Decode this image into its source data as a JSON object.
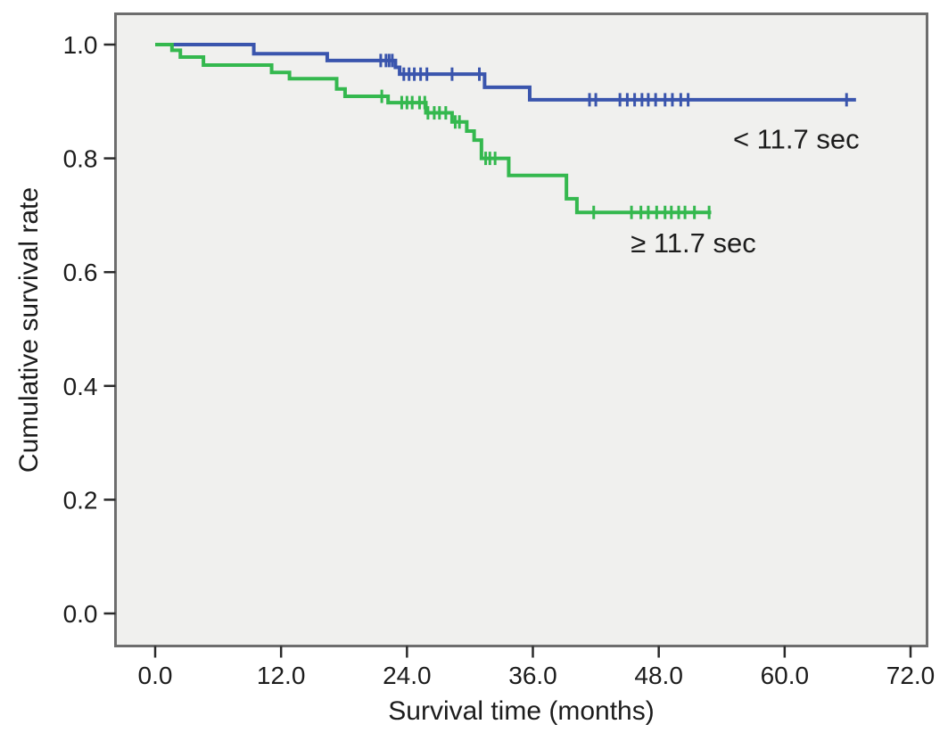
{
  "figure": {
    "background": "#ffffff",
    "plot_background": "#f0f0ee",
    "border_color": "#6d6d6d",
    "tick_color": "#2a2a2a",
    "text_color": "#1c1c1c"
  },
  "chart_data": {
    "type": "line",
    "subtype": "kaplan_meier_step",
    "title": "",
    "xlabel": "Survival time (months)",
    "ylabel": "Cumulative survival rate",
    "xlim": [
      0,
      72
    ],
    "ylim": [
      0.0,
      1.0
    ],
    "grid": false,
    "legend_position": "inline_annotations",
    "x_ticks": [
      0,
      12,
      24,
      36,
      48,
      60,
      72
    ],
    "x_tick_labels": [
      "0.0",
      "12.0",
      "24.0",
      "36.0",
      "48.0",
      "60.0",
      "72.0"
    ],
    "y_ticks": [
      1.0,
      0.8,
      0.6,
      0.4,
      0.2,
      0.0
    ],
    "y_tick_labels": [
      "1.0",
      "0.8",
      "0.6",
      "0.4",
      "0.2",
      "0.0"
    ],
    "series": [
      {
        "name": "< 11.7 sec",
        "color": "#3a55ad",
        "steps": [
          [
            0,
            1.0
          ],
          [
            9.4,
            0.984
          ],
          [
            16.4,
            0.972
          ],
          [
            22.9,
            0.96
          ],
          [
            23.3,
            0.948
          ],
          [
            31.4,
            0.925
          ],
          [
            35.7,
            0.903
          ]
        ],
        "end_x": 66.8,
        "censor_x": [
          21.5,
          22.0,
          22.3,
          22.6,
          23.7,
          24.2,
          24.7,
          25.3,
          25.9,
          28.3,
          30.9,
          41.4,
          42.0,
          44.3,
          45.0,
          45.7,
          46.4,
          47.0,
          47.7,
          48.6,
          49.3,
          50.1,
          50.8,
          65.9
        ]
      },
      {
        "name": "≥ 11.7 sec",
        "color": "#34b84e",
        "steps": [
          [
            0,
            1.0
          ],
          [
            1.6,
            0.99
          ],
          [
            2.4,
            0.978
          ],
          [
            4.6,
            0.964
          ],
          [
            11.1,
            0.951
          ],
          [
            12.8,
            0.94
          ],
          [
            17.3,
            0.922
          ],
          [
            18.1,
            0.909
          ],
          [
            22.2,
            0.898
          ],
          [
            25.8,
            0.88
          ],
          [
            28.3,
            0.864
          ],
          [
            29.7,
            0.848
          ],
          [
            30.4,
            0.832
          ],
          [
            31.1,
            0.8
          ],
          [
            33.7,
            0.77
          ],
          [
            39.2,
            0.729
          ],
          [
            40.2,
            0.705
          ]
        ],
        "end_x": 53.0,
        "censor_x": [
          21.6,
          23.5,
          24.0,
          24.5,
          25.2,
          25.7,
          26.0,
          26.6,
          27.1,
          27.7,
          28.6,
          29.0,
          31.5,
          31.9,
          32.4,
          41.8,
          45.4,
          46.3,
          47.0,
          47.8,
          48.6,
          49.2,
          49.9,
          50.5,
          51.4,
          52.8
        ]
      }
    ],
    "annotations": [
      {
        "text": "< 11.7 sec",
        "x": 61.1,
        "y": 0.835
      },
      {
        "text": "≥ 11.7 sec",
        "x": 51.3,
        "y": 0.652
      }
    ]
  }
}
